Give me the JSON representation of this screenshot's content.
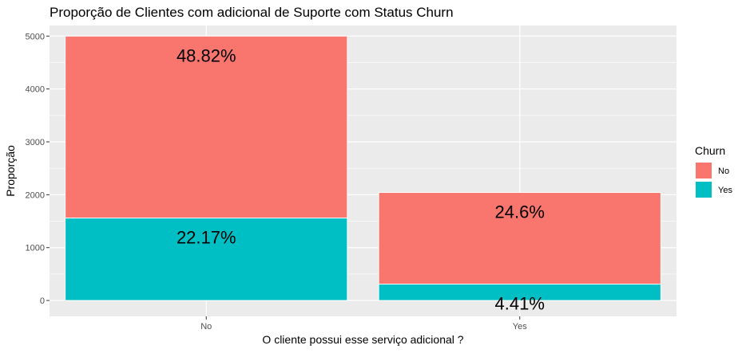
{
  "chart_data": {
    "type": "bar",
    "stacked": true,
    "title": "Proporção de Clientes com adicional de Suporte com Status Churn",
    "xlabel": "O cliente possui esse serviço adicional ?",
    "ylabel": "Proporção",
    "categories": [
      "No",
      "Yes"
    ],
    "series": [
      {
        "name": "No",
        "color": "#F8766D",
        "values": [
          3440,
          1733
        ],
        "labels": [
          "48.82%",
          "24.6%"
        ]
      },
      {
        "name": "Yes",
        "color": "#00BFC4",
        "values": [
          1560,
          310
        ],
        "labels": [
          "22.17%",
          "4.41%"
        ]
      }
    ],
    "yticks": [
      0,
      1000,
      2000,
      3000,
      4000,
      5000
    ],
    "ylim": [
      -300,
      5200
    ],
    "grid": true,
    "legend": {
      "title": "Churn",
      "position": "right"
    },
    "panel_background": "#EBEBEB"
  }
}
